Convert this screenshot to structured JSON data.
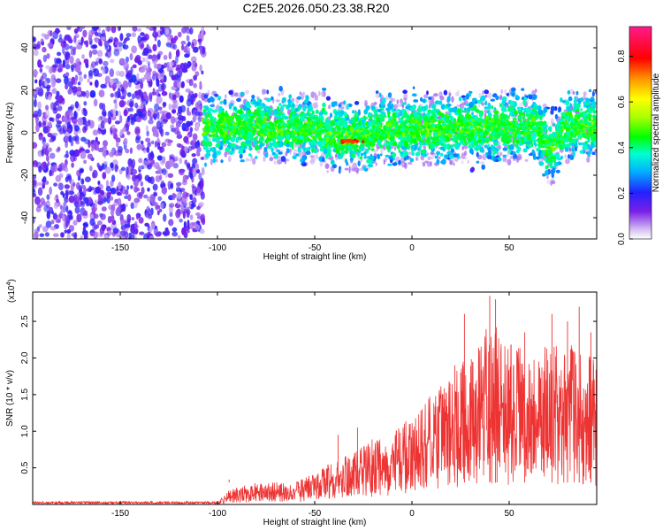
{
  "title": "C2E5.2026.050.23.38.R20",
  "chart_data": [
    {
      "type": "heatmap",
      "xlabel": "Height of straight line (km)",
      "ylabel": "Frequency (Hz)",
      "xlim": [
        -195,
        95
      ],
      "ylim": [
        -50,
        50
      ],
      "xticks": [
        -150,
        -100,
        -50,
        0,
        50
      ],
      "yticks": [
        -40,
        -20,
        0,
        20,
        40
      ],
      "colorbar": {
        "label": "Normalized spectral amplitude",
        "range": [
          0,
          0.93
        ],
        "ticks": [
          "0.0",
          "0.2",
          "0.4",
          "0.6",
          "0.8"
        ]
      },
      "grid": false
    },
    {
      "type": "line",
      "xlabel": "Height of straight line (km)",
      "ylabel": "SNR (10 * v/v)",
      "multiplier": "(x10",
      "multiplier_exp": "4",
      "multiplier_close": ")",
      "xlim": [
        -195,
        95
      ],
      "ylim": [
        0,
        2.9
      ],
      "xticks": [
        -150,
        -100,
        -50,
        0,
        50
      ],
      "yticks": [
        "0.5",
        "1.0",
        "1.5",
        "2.0",
        "2.5"
      ],
      "series": [
        {
          "color": "#ee3333",
          "envelope": [
            {
              "x": -195,
              "y": 0.02
            },
            {
              "x": -100,
              "y": 0.03
            },
            {
              "x": -95,
              "y": 0.2
            },
            {
              "x": -80,
              "y": 0.3
            },
            {
              "x": -60,
              "y": 0.3
            },
            {
              "x": -50,
              "y": 0.45
            },
            {
              "x": -40,
              "y": 0.6
            },
            {
              "x": -30,
              "y": 0.7
            },
            {
              "x": -20,
              "y": 0.9
            },
            {
              "x": -10,
              "y": 1.0
            },
            {
              "x": 0,
              "y": 1.2
            },
            {
              "x": 10,
              "y": 1.5
            },
            {
              "x": 20,
              "y": 1.8
            },
            {
              "x": 30,
              "y": 2.1
            },
            {
              "x": 40,
              "y": 2.5
            },
            {
              "x": 50,
              "y": 2.3
            },
            {
              "x": 60,
              "y": 2.0
            },
            {
              "x": 70,
              "y": 2.2
            },
            {
              "x": 80,
              "y": 2.3
            },
            {
              "x": 95,
              "y": 2.0
            }
          ],
          "peaks": [
            {
              "x": -94,
              "y": 0.34
            },
            {
              "x": -38,
              "y": 0.95
            },
            {
              "x": -28,
              "y": 1.05
            },
            {
              "x": 22,
              "y": 1.9
            },
            {
              "x": 27,
              "y": 2.6
            },
            {
              "x": 40,
              "y": 2.85
            },
            {
              "x": 43,
              "y": 2.8
            },
            {
              "x": 58,
              "y": 2.35
            },
            {
              "x": 72,
              "y": 2.6
            },
            {
              "x": 80,
              "y": 2.5
            },
            {
              "x": 86,
              "y": 2.7
            },
            {
              "x": 92,
              "y": 2.35
            }
          ]
        }
      ]
    }
  ]
}
